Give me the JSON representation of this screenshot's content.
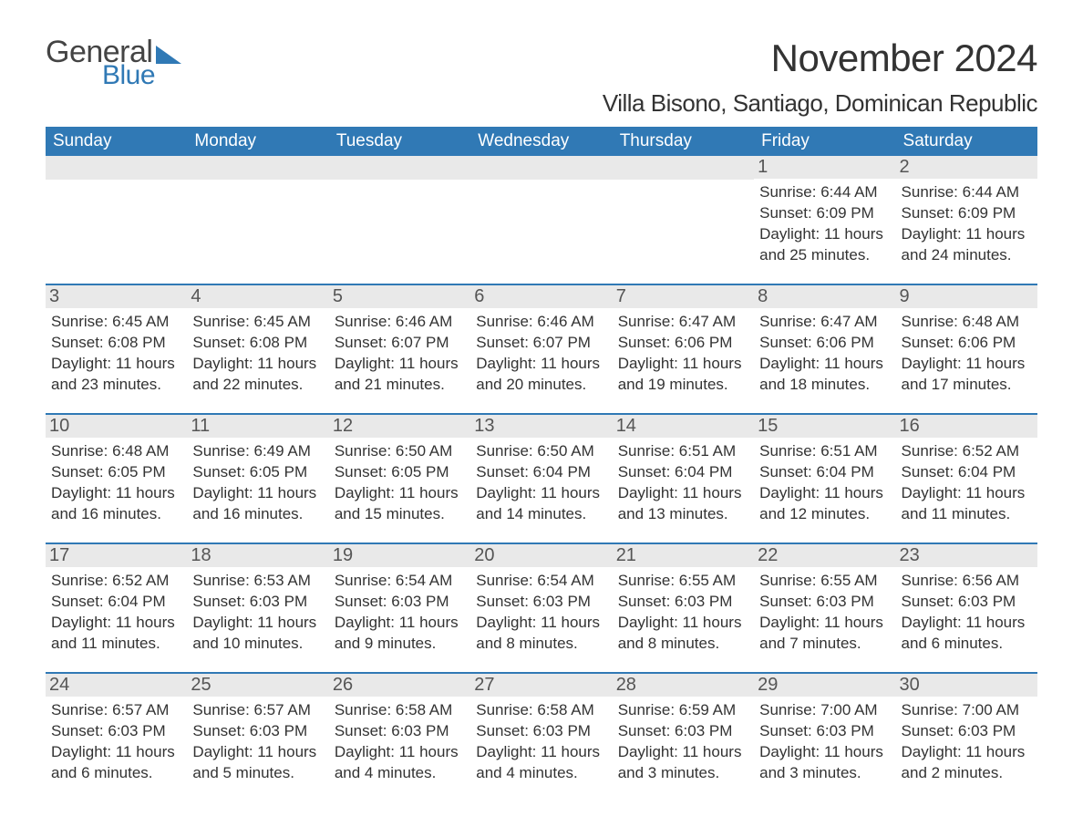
{
  "logo": {
    "general": "General",
    "blue": "Blue",
    "shape_color": "#3079b5",
    "text_color_general": "#444444",
    "text_color_blue": "#3079b5"
  },
  "title": "November 2024",
  "location": "Villa Bisono, Santiago, Dominican Republic",
  "layout": {
    "columns": 7,
    "rows": 5,
    "header_bg": "#3079b5",
    "header_fg": "#ffffff",
    "row_divider_color": "#3079b5",
    "daynum_bg": "#e9e9e9",
    "body_font_size_pt": 13,
    "title_font_size_pt": 32,
    "location_font_size_pt": 20,
    "background_color": "#ffffff"
  },
  "day_headers": [
    "Sunday",
    "Monday",
    "Tuesday",
    "Wednesday",
    "Thursday",
    "Friday",
    "Saturday"
  ],
  "weeks": [
    [
      {
        "day": "",
        "sunrise": "",
        "sunset": "",
        "daylight": ""
      },
      {
        "day": "",
        "sunrise": "",
        "sunset": "",
        "daylight": ""
      },
      {
        "day": "",
        "sunrise": "",
        "sunset": "",
        "daylight": ""
      },
      {
        "day": "",
        "sunrise": "",
        "sunset": "",
        "daylight": ""
      },
      {
        "day": "",
        "sunrise": "",
        "sunset": "",
        "daylight": ""
      },
      {
        "day": "1",
        "sunrise": "Sunrise: 6:44 AM",
        "sunset": "Sunset: 6:09 PM",
        "daylight": "Daylight: 11 hours and 25 minutes."
      },
      {
        "day": "2",
        "sunrise": "Sunrise: 6:44 AM",
        "sunset": "Sunset: 6:09 PM",
        "daylight": "Daylight: 11 hours and 24 minutes."
      }
    ],
    [
      {
        "day": "3",
        "sunrise": "Sunrise: 6:45 AM",
        "sunset": "Sunset: 6:08 PM",
        "daylight": "Daylight: 11 hours and 23 minutes."
      },
      {
        "day": "4",
        "sunrise": "Sunrise: 6:45 AM",
        "sunset": "Sunset: 6:08 PM",
        "daylight": "Daylight: 11 hours and 22 minutes."
      },
      {
        "day": "5",
        "sunrise": "Sunrise: 6:46 AM",
        "sunset": "Sunset: 6:07 PM",
        "daylight": "Daylight: 11 hours and 21 minutes."
      },
      {
        "day": "6",
        "sunrise": "Sunrise: 6:46 AM",
        "sunset": "Sunset: 6:07 PM",
        "daylight": "Daylight: 11 hours and 20 minutes."
      },
      {
        "day": "7",
        "sunrise": "Sunrise: 6:47 AM",
        "sunset": "Sunset: 6:06 PM",
        "daylight": "Daylight: 11 hours and 19 minutes."
      },
      {
        "day": "8",
        "sunrise": "Sunrise: 6:47 AM",
        "sunset": "Sunset: 6:06 PM",
        "daylight": "Daylight: 11 hours and 18 minutes."
      },
      {
        "day": "9",
        "sunrise": "Sunrise: 6:48 AM",
        "sunset": "Sunset: 6:06 PM",
        "daylight": "Daylight: 11 hours and 17 minutes."
      }
    ],
    [
      {
        "day": "10",
        "sunrise": "Sunrise: 6:48 AM",
        "sunset": "Sunset: 6:05 PM",
        "daylight": "Daylight: 11 hours and 16 minutes."
      },
      {
        "day": "11",
        "sunrise": "Sunrise: 6:49 AM",
        "sunset": "Sunset: 6:05 PM",
        "daylight": "Daylight: 11 hours and 16 minutes."
      },
      {
        "day": "12",
        "sunrise": "Sunrise: 6:50 AM",
        "sunset": "Sunset: 6:05 PM",
        "daylight": "Daylight: 11 hours and 15 minutes."
      },
      {
        "day": "13",
        "sunrise": "Sunrise: 6:50 AM",
        "sunset": "Sunset: 6:04 PM",
        "daylight": "Daylight: 11 hours and 14 minutes."
      },
      {
        "day": "14",
        "sunrise": "Sunrise: 6:51 AM",
        "sunset": "Sunset: 6:04 PM",
        "daylight": "Daylight: 11 hours and 13 minutes."
      },
      {
        "day": "15",
        "sunrise": "Sunrise: 6:51 AM",
        "sunset": "Sunset: 6:04 PM",
        "daylight": "Daylight: 11 hours and 12 minutes."
      },
      {
        "day": "16",
        "sunrise": "Sunrise: 6:52 AM",
        "sunset": "Sunset: 6:04 PM",
        "daylight": "Daylight: 11 hours and 11 minutes."
      }
    ],
    [
      {
        "day": "17",
        "sunrise": "Sunrise: 6:52 AM",
        "sunset": "Sunset: 6:04 PM",
        "daylight": "Daylight: 11 hours and 11 minutes."
      },
      {
        "day": "18",
        "sunrise": "Sunrise: 6:53 AM",
        "sunset": "Sunset: 6:03 PM",
        "daylight": "Daylight: 11 hours and 10 minutes."
      },
      {
        "day": "19",
        "sunrise": "Sunrise: 6:54 AM",
        "sunset": "Sunset: 6:03 PM",
        "daylight": "Daylight: 11 hours and 9 minutes."
      },
      {
        "day": "20",
        "sunrise": "Sunrise: 6:54 AM",
        "sunset": "Sunset: 6:03 PM",
        "daylight": "Daylight: 11 hours and 8 minutes."
      },
      {
        "day": "21",
        "sunrise": "Sunrise: 6:55 AM",
        "sunset": "Sunset: 6:03 PM",
        "daylight": "Daylight: 11 hours and 8 minutes."
      },
      {
        "day": "22",
        "sunrise": "Sunrise: 6:55 AM",
        "sunset": "Sunset: 6:03 PM",
        "daylight": "Daylight: 11 hours and 7 minutes."
      },
      {
        "day": "23",
        "sunrise": "Sunrise: 6:56 AM",
        "sunset": "Sunset: 6:03 PM",
        "daylight": "Daylight: 11 hours and 6 minutes."
      }
    ],
    [
      {
        "day": "24",
        "sunrise": "Sunrise: 6:57 AM",
        "sunset": "Sunset: 6:03 PM",
        "daylight": "Daylight: 11 hours and 6 minutes."
      },
      {
        "day": "25",
        "sunrise": "Sunrise: 6:57 AM",
        "sunset": "Sunset: 6:03 PM",
        "daylight": "Daylight: 11 hours and 5 minutes."
      },
      {
        "day": "26",
        "sunrise": "Sunrise: 6:58 AM",
        "sunset": "Sunset: 6:03 PM",
        "daylight": "Daylight: 11 hours and 4 minutes."
      },
      {
        "day": "27",
        "sunrise": "Sunrise: 6:58 AM",
        "sunset": "Sunset: 6:03 PM",
        "daylight": "Daylight: 11 hours and 4 minutes."
      },
      {
        "day": "28",
        "sunrise": "Sunrise: 6:59 AM",
        "sunset": "Sunset: 6:03 PM",
        "daylight": "Daylight: 11 hours and 3 minutes."
      },
      {
        "day": "29",
        "sunrise": "Sunrise: 7:00 AM",
        "sunset": "Sunset: 6:03 PM",
        "daylight": "Daylight: 11 hours and 3 minutes."
      },
      {
        "day": "30",
        "sunrise": "Sunrise: 7:00 AM",
        "sunset": "Sunset: 6:03 PM",
        "daylight": "Daylight: 11 hours and 2 minutes."
      }
    ]
  ]
}
